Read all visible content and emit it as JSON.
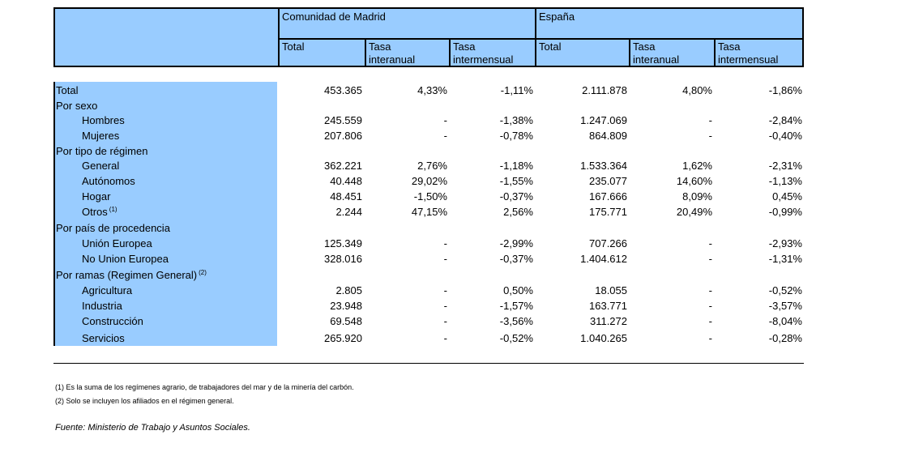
{
  "header": {
    "madrid": "Comunidad de Madrid",
    "espana": "España",
    "cols": [
      {
        "l1": "Total",
        "l2": ""
      },
      {
        "l1": "Tasa",
        "l2": "interanual"
      },
      {
        "l1": "Tasa",
        "l2": "intermensual"
      },
      {
        "l1": "Total",
        "l2": ""
      },
      {
        "l1": "Tasa",
        "l2": "interanual"
      },
      {
        "l1": "Tasa",
        "l2": "intermensual"
      }
    ]
  },
  "rows": [
    {
      "label": "Total",
      "indent": false,
      "values": [
        "453.365",
        "4,33%",
        "-1,11%",
        "2.111.878",
        "4,80%",
        "-1,86%"
      ]
    },
    {
      "label": "Por sexo",
      "indent": false,
      "values": []
    },
    {
      "label": "Hombres",
      "indent": true,
      "values": [
        "245.559",
        "-",
        "-1,38%",
        "1.247.069",
        "-",
        "-2,84%"
      ]
    },
    {
      "label": "Mujeres",
      "indent": true,
      "values": [
        "207.806",
        "-",
        "-0,78%",
        "864.809",
        "-",
        "-0,40%"
      ]
    },
    {
      "label": "Por tipo de régimen",
      "indent": false,
      "values": []
    },
    {
      "label": "General",
      "indent": true,
      "values": [
        "362.221",
        "2,76%",
        "-1,18%",
        "1.533.364",
        "1,62%",
        "-2,31%"
      ]
    },
    {
      "label": "Autónomos",
      "indent": true,
      "values": [
        "40.448",
        "29,02%",
        "-1,55%",
        "235.077",
        "14,60%",
        "-1,13%"
      ]
    },
    {
      "label": "Hogar",
      "indent": true,
      "values": [
        "48.451",
        "-1,50%",
        "-0,37%",
        "167.666",
        "8,09%",
        "0,45%"
      ]
    },
    {
      "label": "Otros",
      "indent": true,
      "sup": "(1)",
      "values": [
        "2.244",
        "47,15%",
        "2,56%",
        "175.771",
        "20,49%",
        "-0,99%"
      ]
    },
    {
      "label": "Por país de procedencia",
      "indent": false,
      "values": []
    },
    {
      "label": "Unión Europea",
      "indent": true,
      "values": [
        "125.349",
        "-",
        "-2,99%",
        "707.266",
        "-",
        "-2,93%"
      ]
    },
    {
      "label": "No Union Europea",
      "indent": true,
      "values": [
        "328.016",
        "-",
        "-0,37%",
        "1.404.612",
        "-",
        "-1,31%"
      ]
    },
    {
      "label": "Por ramas (Regimen General)",
      "indent": false,
      "sup": "(2)",
      "values": []
    },
    {
      "label": "Agricultura",
      "indent": true,
      "values": [
        "2.805",
        "-",
        "0,50%",
        "18.055",
        "-",
        "-0,52%"
      ]
    },
    {
      "label": "Industria",
      "indent": true,
      "values": [
        "23.948",
        "-",
        "-1,57%",
        "163.771",
        "-",
        "-3,57%"
      ]
    },
    {
      "label": "Construcción",
      "indent": true,
      "values": [
        "69.548",
        "-",
        "-3,56%",
        "311.272",
        "-",
        "-8,04%"
      ]
    },
    {
      "label": "Servicios",
      "indent": true,
      "values": [
        "265.920",
        "-",
        "-0,52%",
        "1.040.265",
        "-",
        "-0,28%"
      ]
    }
  ],
  "notes": [
    "(1) Es la suma de los regímenes  agrario, de trabajadores del mar y de la minería del carbón.",
    "(2) Solo se incluyen los afiliados en el régimen general."
  ],
  "source": "Fuente: Ministerio de Trabajo y Asuntos Sociales."
}
